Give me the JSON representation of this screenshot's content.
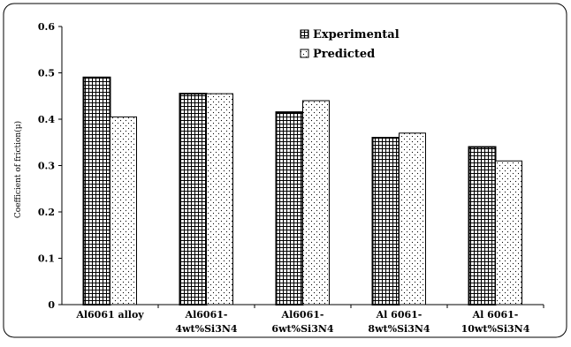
{
  "chart_data": {
    "type": "bar",
    "title": "",
    "xlabel": "",
    "ylabel": "Coefficient of friction(μ)",
    "ylim": [
      0,
      0.6
    ],
    "yticks": [
      "0",
      "0.1",
      "0.2",
      "0.3",
      "0.4",
      "0.5",
      "0.6"
    ],
    "grid": false,
    "legend_position": "top-right",
    "categories": [
      [
        "Al6061 alloy"
      ],
      [
        "Al6061-",
        "4wt%Si3N4"
      ],
      [
        "Al6061-",
        "6wt%Si3N4"
      ],
      [
        "Al 6061-",
        "8wt%Si3N4"
      ],
      [
        "Al 6061-",
        "10wt%Si3N4"
      ]
    ],
    "series": [
      {
        "name": "Experimental",
        "pattern": "grid",
        "values": [
          0.49,
          0.455,
          0.415,
          0.36,
          0.34
        ]
      },
      {
        "name": "Predicted",
        "pattern": "dots",
        "values": [
          0.405,
          0.455,
          0.44,
          0.37,
          0.31
        ]
      }
    ],
    "colors": {
      "stroke": "#000000",
      "background": "#ffffff"
    }
  }
}
